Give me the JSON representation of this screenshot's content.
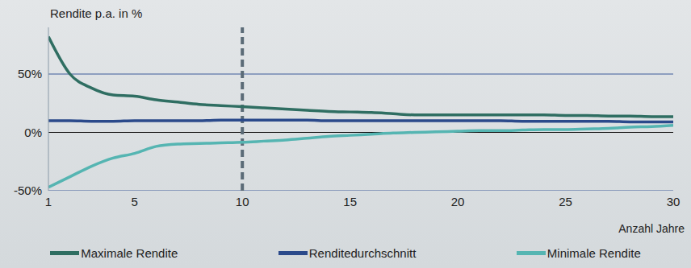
{
  "chart_data": {
    "type": "line",
    "y_label": "Rendite p.a. in %",
    "x_label": "Anzahl Jahre",
    "x": [
      1,
      2,
      3,
      4,
      5,
      6,
      7,
      8,
      9,
      10,
      11,
      12,
      13,
      14,
      15,
      16,
      17,
      18,
      19,
      20,
      21,
      22,
      23,
      24,
      25,
      26,
      27,
      28,
      29,
      30
    ],
    "series": [
      {
        "name": "Maximale Rendite",
        "color": "#2f6e62",
        "values": [
          82,
          50,
          38,
          32,
          31,
          28,
          26,
          24,
          23,
          22,
          21,
          20,
          19,
          18,
          17.5,
          17,
          16,
          15,
          15,
          15,
          15,
          15,
          15,
          15,
          14.5,
          14.5,
          14,
          14,
          13.5,
          13.5
        ]
      },
      {
        "name": "Renditedurchschnitt",
        "color": "#2b4a8b",
        "values": [
          10,
          10,
          9.5,
          9.5,
          10,
          10,
          10,
          10,
          10.5,
          10.5,
          10.5,
          10.5,
          10.5,
          10,
          10,
          10,
          10,
          10,
          10,
          10,
          10,
          10,
          9.5,
          9.5,
          9.5,
          9.5,
          9.5,
          9,
          9,
          9
        ]
      },
      {
        "name": "Minimale Rendite",
        "color": "#55b5b2",
        "values": [
          -47,
          -38,
          -29,
          -22,
          -18,
          -12,
          -10,
          -9.5,
          -9,
          -8.5,
          -7.5,
          -6.5,
          -5,
          -3.5,
          -2.5,
          -1.5,
          -0.5,
          0,
          0.5,
          1,
          1.5,
          1.5,
          2,
          2.5,
          2.5,
          3,
          3.5,
          4.5,
          5,
          6
        ]
      }
    ],
    "xlim": [
      1,
      30
    ],
    "xticks": [
      1,
      5,
      10,
      15,
      20,
      25,
      30
    ],
    "ylim": [
      -50,
      90
    ],
    "yticks": [
      {
        "value": -50,
        "label": "-50%"
      },
      {
        "value": 0,
        "label": "0%"
      },
      {
        "value": 50,
        "label": "50%"
      }
    ],
    "grid": true,
    "legend": "bottom",
    "reference_x": 10
  }
}
